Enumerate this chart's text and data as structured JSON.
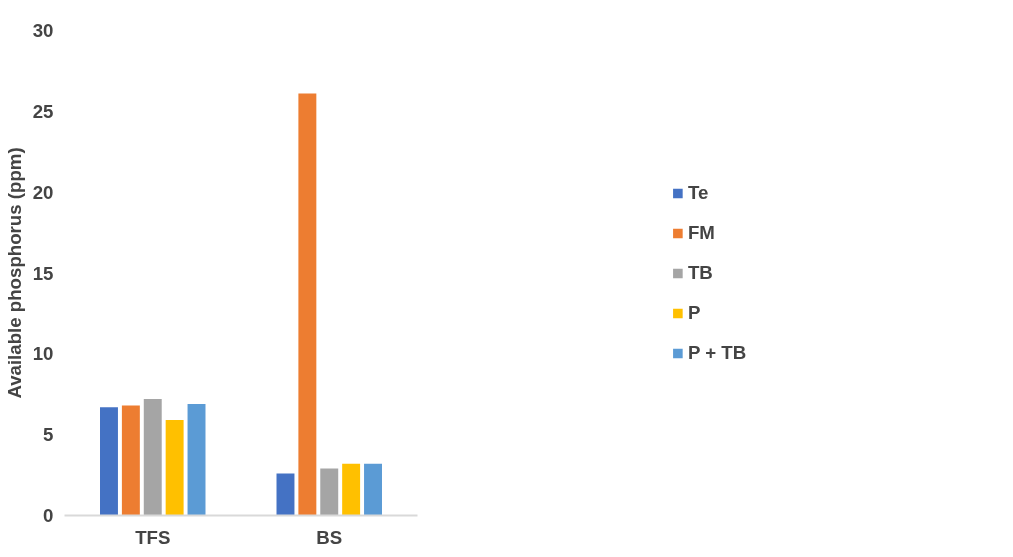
{
  "chart_data": {
    "type": "bar",
    "ylabel": "Available phosphorus (ppm)",
    "categories": [
      "TFS",
      "BS"
    ],
    "series": [
      {
        "name": "Te",
        "color": "#4472c4",
        "values": [
          6.7,
          2.6
        ]
      },
      {
        "name": "FM",
        "color": "#ed7d31",
        "values": [
          6.8,
          26.1
        ]
      },
      {
        "name": "TB",
        "color": "#a5a5a5",
        "values": [
          7.2,
          2.9
        ]
      },
      {
        "name": "P",
        "color": "#ffc000",
        "values": [
          5.9,
          3.2
        ]
      },
      {
        "name": "P + TB",
        "color": "#5b9bd5",
        "values": [
          6.9,
          3.2
        ]
      }
    ],
    "ylim": [
      0,
      30
    ],
    "yticks": [
      0,
      5,
      10,
      15,
      20,
      25,
      30
    ],
    "grid": false,
    "legend": "right"
  }
}
